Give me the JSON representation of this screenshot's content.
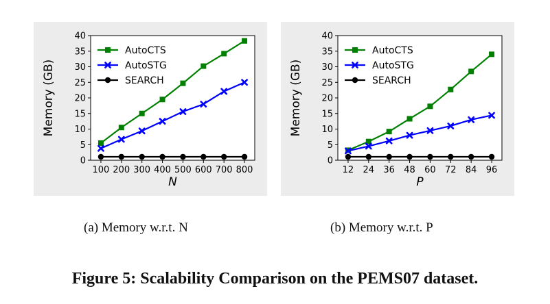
{
  "chart_data": [
    {
      "type": "line",
      "caption": "(a)  Memory w.r.t. N",
      "xlabel": "N",
      "ylabel": "Memory (GB)",
      "x": [
        100,
        200,
        300,
        400,
        500,
        600,
        700,
        800
      ],
      "x_ticks": [
        "100",
        "200",
        "300",
        "400",
        "500",
        "600",
        "700",
        "800"
      ],
      "ylim": [
        0,
        40
      ],
      "y_ticks": [
        "0",
        "5",
        "10",
        "15",
        "20",
        "25",
        "30",
        "35",
        "40"
      ],
      "legend_position": "top-left",
      "grid": false,
      "series": [
        {
          "name": "AutoCTS",
          "color": "#008000",
          "marker": "square",
          "values": [
            5.5,
            10.5,
            15.0,
            19.5,
            24.7,
            30.2,
            34.2,
            38.3
          ]
        },
        {
          "name": "AutoSTG",
          "color": "#0000ff",
          "marker": "x",
          "values": [
            3.8,
            6.7,
            9.4,
            12.5,
            15.6,
            18.0,
            22.1,
            25.0
          ]
        },
        {
          "name": "SEARCH",
          "color": "#000000",
          "marker": "circle",
          "values": [
            1.1,
            1.1,
            1.1,
            1.1,
            1.1,
            1.1,
            1.1,
            1.1
          ]
        }
      ]
    },
    {
      "type": "line",
      "caption": "(b)  Memory w.r.t. P",
      "xlabel": "P",
      "ylabel": "Memory (GB)",
      "x": [
        12,
        24,
        36,
        48,
        60,
        72,
        84,
        96
      ],
      "x_ticks": [
        "12",
        "24",
        "36",
        "48",
        "60",
        "72",
        "84",
        "96"
      ],
      "ylim": [
        0,
        40
      ],
      "y_ticks": [
        "0",
        "5",
        "10",
        "15",
        "20",
        "25",
        "30",
        "35",
        "40"
      ],
      "legend_position": "top-left",
      "grid": false,
      "series": [
        {
          "name": "AutoCTS",
          "color": "#008000",
          "marker": "square",
          "values": [
            3.2,
            6.0,
            9.2,
            13.3,
            17.3,
            22.7,
            28.5,
            34.0
          ]
        },
        {
          "name": "AutoSTG",
          "color": "#0000ff",
          "marker": "x",
          "values": [
            3.0,
            4.5,
            6.2,
            8.0,
            9.5,
            11.0,
            13.0,
            14.4
          ]
        },
        {
          "name": "SEARCH",
          "color": "#000000",
          "marker": "circle",
          "values": [
            1.1,
            1.1,
            1.1,
            1.1,
            1.1,
            1.1,
            1.1,
            1.1
          ]
        }
      ]
    }
  ],
  "figure_title": "Figure 5: Scalability Comparison on the PEMS07 dataset."
}
